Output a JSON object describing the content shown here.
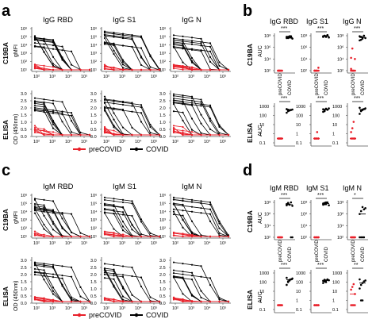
{
  "figure": {
    "panels": {
      "a": "a",
      "b": "b",
      "c": "c",
      "d": "d"
    },
    "rows": {
      "c19ba": "C19BA",
      "elisa": "ELISA"
    },
    "ylabels": {
      "gmfi": "gMFI",
      "od": "OD (450nm)",
      "auc": "AUC"
    },
    "igg_titles": [
      "IgG RBD",
      "IgG S1",
      "IgG N"
    ],
    "igm_titles": [
      "IgM RBD",
      "IgM S1",
      "IgM  N"
    ],
    "legend": {
      "precovid": "preCOVID",
      "covid": "COVID"
    },
    "colors": {
      "precovid": "#e8202a",
      "covid": "#000000",
      "axis": "#555555"
    },
    "dilution_ticks": [
      "10²",
      "10³",
      "10⁴",
      "10⁵"
    ],
    "mfi_ticks": [
      "10¹",
      "10²",
      "10³",
      "10⁴",
      "10⁵",
      "10⁶"
    ],
    "od_ticks": [
      "0.0",
      "0.5",
      "1.0",
      "1.5",
      "2.0",
      "2.5",
      "3.0"
    ],
    "auc_c19ba_ticks": [
      "10⁸",
      "10⁶",
      "10⁴",
      "10²"
    ],
    "auc_elisa_ticks": [
      "1000",
      "100",
      "10",
      "1",
      "0.1"
    ],
    "group_labels": [
      "preCOVID",
      "COVID"
    ]
  },
  "chart_data": [
    {
      "panel": "a",
      "type": "line",
      "row": "C19BA",
      "x_scale": "log",
      "y_scale": "log",
      "xticks": [
        "10²",
        "10³",
        "10⁴",
        "10⁵"
      ],
      "yticks": [
        "10¹",
        "10²",
        "10³",
        "10⁴",
        "10⁵",
        "10⁶"
      ],
      "titles": [
        "IgG RBD",
        "IgG S1",
        "IgG N"
      ],
      "series": [
        {
          "name": "COVID",
          "x": [
            50,
            150,
            450,
            1350,
            4050,
            12150,
            36450
          ],
          "y_range_log10": [
            1,
            6
          ]
        },
        {
          "name": "preCOVID",
          "x": [
            50,
            150,
            450,
            1350,
            4050,
            12150,
            36450
          ],
          "y_range_log10": [
            1,
            2
          ]
        }
      ]
    },
    {
      "panel": "a",
      "type": "line",
      "row": "ELISA",
      "x_scale": "log",
      "y_scale": "linear",
      "ylim": [
        0,
        3.0
      ],
      "xticks": [
        "10²",
        "10³",
        "10⁴",
        "10⁵"
      ],
      "yticks": [
        "0.0",
        "0.5",
        "1.0",
        "1.5",
        "2.0",
        "2.5",
        "3.0"
      ],
      "titles": [
        "IgG RBD",
        "IgG S1",
        "IgG N"
      ],
      "series": [
        {
          "name": "COVID",
          "x": [
            50,
            150,
            450,
            1350,
            4050,
            12150,
            36450
          ],
          "y_range": [
            0,
            3.0
          ]
        },
        {
          "name": "preCOVID",
          "x": [
            50,
            150,
            450,
            1350,
            4050,
            12150,
            36450
          ],
          "y_range": [
            0,
            0.6
          ]
        }
      ]
    },
    {
      "panel": "b",
      "type": "scatter",
      "row": "C19BA",
      "y_scale": "log",
      "titles": [
        "IgG RBD",
        "IgG S1",
        "IgG N"
      ],
      "significance": [
        "***",
        "***",
        "***"
      ],
      "preCOVID_log10": [
        [
          2,
          2,
          2,
          2,
          2,
          2,
          2,
          2,
          2,
          2
        ],
        [
          2,
          2,
          2,
          2,
          2,
          2,
          2,
          2.5,
          2,
          2
        ],
        [
          2,
          2,
          2,
          4,
          4.2,
          5.8,
          2,
          2,
          2.3,
          2
        ]
      ],
      "COVID_log10": [
        [
          7.6,
          7.8,
          7.7,
          7.9,
          7.5,
          7.8,
          7.6,
          7.9,
          7.7
        ],
        [
          7.8,
          8,
          7.9,
          8.1,
          7.7,
          7.9,
          8,
          7.8,
          8.1
        ],
        [
          7.2,
          7.8,
          7.5,
          8,
          7.6,
          7.9,
          7.3,
          7.7,
          8
        ]
      ]
    },
    {
      "panel": "b",
      "type": "scatter",
      "row": "ELISA",
      "y_scale": "log",
      "titles": [
        "IgG RBD",
        "IgG S1",
        "IgG N"
      ],
      "significance": [
        "***",
        "***",
        "***"
      ],
      "preCOVID": [
        [
          0.3,
          0.3,
          0.3,
          0.3,
          0.3,
          0.3,
          0.3,
          0.3
        ],
        [
          0.3,
          0.3,
          0.3,
          0.3,
          0.3,
          0.3,
          1.5,
          0.3
        ],
        [
          0.3,
          0.3,
          0.3,
          0.3,
          1.5,
          4,
          20,
          0.3
        ]
      ],
      "COVID": [
        [
          200,
          300,
          350,
          400,
          450,
          500,
          420,
          380
        ],
        [
          250,
          350,
          500,
          420,
          600,
          480,
          300,
          550
        ],
        [
          150,
          300,
          400,
          500,
          600,
          700,
          350,
          450
        ]
      ]
    },
    {
      "panel": "c",
      "type": "line",
      "row": "C19BA",
      "x_scale": "log",
      "y_scale": "log",
      "xticks": [
        "10²",
        "10³",
        "10⁴",
        "10⁵"
      ],
      "yticks": [
        "10¹",
        "10²",
        "10³",
        "10⁴",
        "10⁵",
        "10⁶"
      ],
      "titles": [
        "IgM RBD",
        "IgM S1",
        "IgM  N"
      ],
      "series": [
        {
          "name": "COVID",
          "x": [
            50,
            150,
            450,
            1350,
            4050,
            12150,
            36450
          ],
          "y_range_log10": [
            1,
            6
          ]
        },
        {
          "name": "preCOVID",
          "x": [
            50,
            150,
            450,
            1350,
            4050,
            12150,
            36450
          ],
          "y_range_log10": [
            1,
            1.5
          ]
        }
      ]
    },
    {
      "panel": "c",
      "type": "line",
      "row": "ELISA",
      "x_scale": "log",
      "y_scale": "linear",
      "ylim": [
        0,
        3.0
      ],
      "xticks": [
        "10²",
        "10³",
        "10⁴",
        "10⁵"
      ],
      "yticks": [
        "0.0",
        "0.5",
        "1.0",
        "1.5",
        "2.0",
        "2.5",
        "3.0"
      ],
      "titles": [
        "IgM RBD",
        "IgM S1",
        "IgM  N"
      ],
      "series": [
        {
          "name": "COVID",
          "x": [
            50,
            150,
            450,
            1350,
            4050,
            12150,
            36450
          ],
          "y_range": [
            0,
            2.6
          ]
        },
        {
          "name": "preCOVID",
          "x": [
            50,
            150,
            450,
            1350,
            4050,
            12150,
            36450
          ],
          "y_range": [
            0,
            0.4
          ]
        }
      ]
    },
    {
      "panel": "d",
      "type": "scatter",
      "row": "C19BA",
      "y_scale": "log",
      "titles": [
        "IgM RBD",
        "IgM S1",
        "IgM N"
      ],
      "significance": [
        "***",
        "***",
        "*"
      ],
      "preCOVID_log10": [
        [
          2,
          2,
          2,
          2,
          2,
          2,
          2,
          2
        ],
        [
          2,
          2,
          2,
          2,
          2,
          2,
          2,
          2
        ],
        [
          2,
          2,
          2,
          2,
          2,
          2,
          2,
          2
        ]
      ],
      "COVID_log10": [
        [
          7.5,
          7.8,
          7.6,
          8,
          7.4,
          7.7,
          7.9,
          7.6,
          2,
          2
        ],
        [
          7.6,
          7.9,
          7.7,
          8,
          7.5,
          7.8,
          7.7,
          8
        ],
        [
          6,
          6.5,
          7.2,
          6.8,
          7,
          2,
          2,
          2,
          2
        ]
      ]
    },
    {
      "panel": "d",
      "type": "scatter",
      "row": "ELISA",
      "y_scale": "log",
      "titles": [
        "IgM RBD",
        "IgM S1",
        "IgM N"
      ],
      "significance": [
        "***",
        "***",
        "**"
      ],
      "preCOVID": [
        [
          0.3,
          0.3,
          0.3,
          0.3,
          0.3,
          0.3,
          0.3,
          0.3
        ],
        [
          0.3,
          0.3,
          0.3,
          0.3,
          0.3,
          0.3,
          0.3,
          0.3
        ],
        [
          0.3,
          0.3,
          0.3,
          5,
          15,
          30,
          60,
          0.3
        ]
      ],
      "COVID": [
        [
          50,
          100,
          150,
          200,
          250,
          300,
          120,
          180
        ],
        [
          80,
          120,
          150,
          200,
          160,
          140,
          180,
          100
        ],
        [
          20,
          50,
          80,
          120,
          150,
          200,
          1,
          1
        ]
      ]
    }
  ]
}
